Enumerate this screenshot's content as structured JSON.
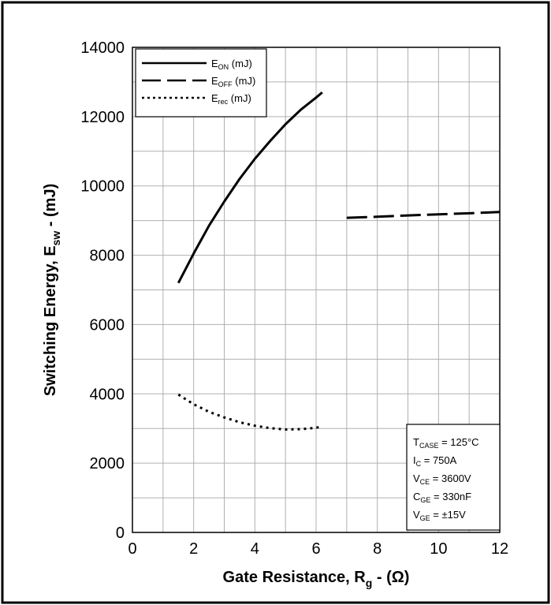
{
  "chart_data": {
    "type": "line",
    "xlabel": {
      "main": "Gate Resistance, R",
      "sub": "g",
      "tail": " - (Ω)"
    },
    "ylabel": {
      "main": "Switching Energy, E",
      "sub": "sw",
      "tail": " - (mJ)"
    },
    "xlim": [
      0,
      12
    ],
    "ylim": [
      0,
      14000
    ],
    "x_ticks": [
      0,
      2,
      4,
      6,
      8,
      10,
      12
    ],
    "y_ticks": [
      0,
      2000,
      4000,
      6000,
      8000,
      10000,
      12000,
      14000
    ],
    "grid": true,
    "legend_position": "top-left",
    "series": [
      {
        "name": "E_ON (mJ)",
        "legend": {
          "main": "E",
          "sub": "ON",
          "tail": " (mJ)"
        },
        "style": "solid",
        "x": [
          1.5,
          2.0,
          2.5,
          3.0,
          3.5,
          4.0,
          4.5,
          5.0,
          5.5,
          6.0,
          6.2
        ],
        "y": [
          7200,
          8050,
          8850,
          9550,
          10200,
          10780,
          11300,
          11780,
          12200,
          12550,
          12700
        ]
      },
      {
        "name": "E_OFF (mJ)",
        "legend": {
          "main": "E",
          "sub": "OFF",
          "tail": " (mJ)"
        },
        "style": "dashed",
        "x": [
          7.0,
          8.0,
          9.0,
          10.0,
          11.0,
          12.0
        ],
        "y": [
          9080,
          9110,
          9150,
          9180,
          9210,
          9250
        ]
      },
      {
        "name": "E_rec (mJ)",
        "legend": {
          "main": "E",
          "sub": "rec",
          "tail": " (mJ)"
        },
        "style": "dotted",
        "x": [
          1.5,
          2.0,
          2.5,
          3.0,
          3.5,
          4.0,
          4.5,
          5.0,
          5.5,
          6.0,
          6.2
        ],
        "y": [
          3980,
          3700,
          3480,
          3320,
          3180,
          3080,
          3010,
          2970,
          2980,
          3020,
          3060
        ]
      }
    ],
    "conditions": [
      {
        "main": "T",
        "sub": "CASE",
        "tail": " = 125°C"
      },
      {
        "main": "I",
        "sub": "C",
        "tail": " = 750A"
      },
      {
        "main": "V",
        "sub": "CE",
        "tail": " = 3600V"
      },
      {
        "main": "C",
        "sub": "GE",
        "tail": " = 330nF"
      },
      {
        "main": "V",
        "sub": "GE",
        "tail": " = ±15V"
      }
    ]
  }
}
